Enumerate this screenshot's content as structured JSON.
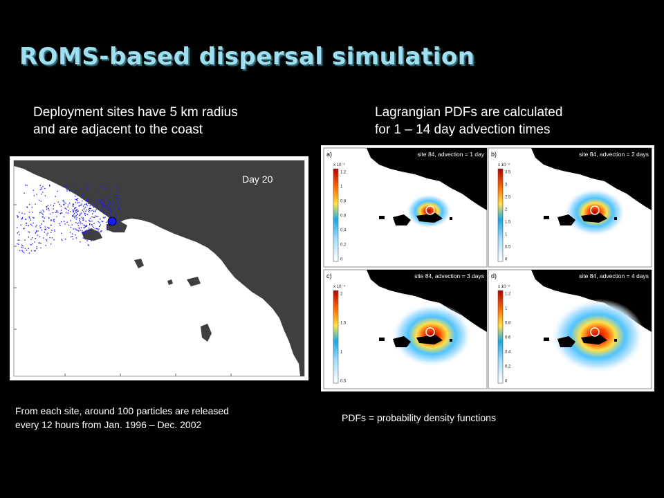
{
  "slide": {
    "title": "ROMS-based dispersal simulation",
    "caption_left": {
      "line1": "Deployment sites have 5 km radius",
      "line2": "and are adjacent to the coast"
    },
    "caption_right": {
      "line1": "Lagrangian PDFs are calculated",
      "line2": "for 1 – 14 day advection times"
    },
    "note_left": {
      "line1": "From each site, around 100 particles are released",
      "line2": "every 12 hours from Jan. 1996 – Dec. 2002"
    },
    "note_right": "PDFs = probability density functions"
  },
  "left_map": {
    "label": "Day 20",
    "colors": {
      "land": "#3f3f3f",
      "ocean": "#ffffff",
      "particles": "#1a1aff"
    }
  },
  "pdf_panels": [
    {
      "letter": "a)",
      "title": "site 84, advection = 1 day",
      "scale": "x 10⁻³",
      "ticks": [
        "1.2",
        "1",
        "0.8",
        "0.6",
        "0.4",
        "0.2",
        "0"
      ]
    },
    {
      "letter": "b)",
      "title": "site 84, advection = 2 days",
      "scale": "x 10⁻⁴",
      "ticks": [
        "3.5",
        "3",
        "2.5",
        "2",
        "1.5",
        "1",
        "0.5",
        "0"
      ]
    },
    {
      "letter": "c)",
      "title": "site 84, advection = 3 days",
      "scale": "x 10⁻⁴",
      "ticks": [
        "2",
        "1.5",
        "1",
        "0.5"
      ]
    },
    {
      "letter": "d)",
      "title": "site 84, advection = 4 days",
      "scale": "x 10⁻⁴",
      "ticks": [
        "1.2",
        "1",
        "0.8",
        "0.6",
        "0.4",
        "0.2",
        "0"
      ]
    }
  ],
  "pdf_intensity": [
    0.25,
    0.5,
    0.8,
    1.0
  ],
  "colormap": [
    "#ffffff",
    "#d8f0ff",
    "#4fc3ff",
    "#ffe14a",
    "#ff6a00",
    "#b80000"
  ]
}
